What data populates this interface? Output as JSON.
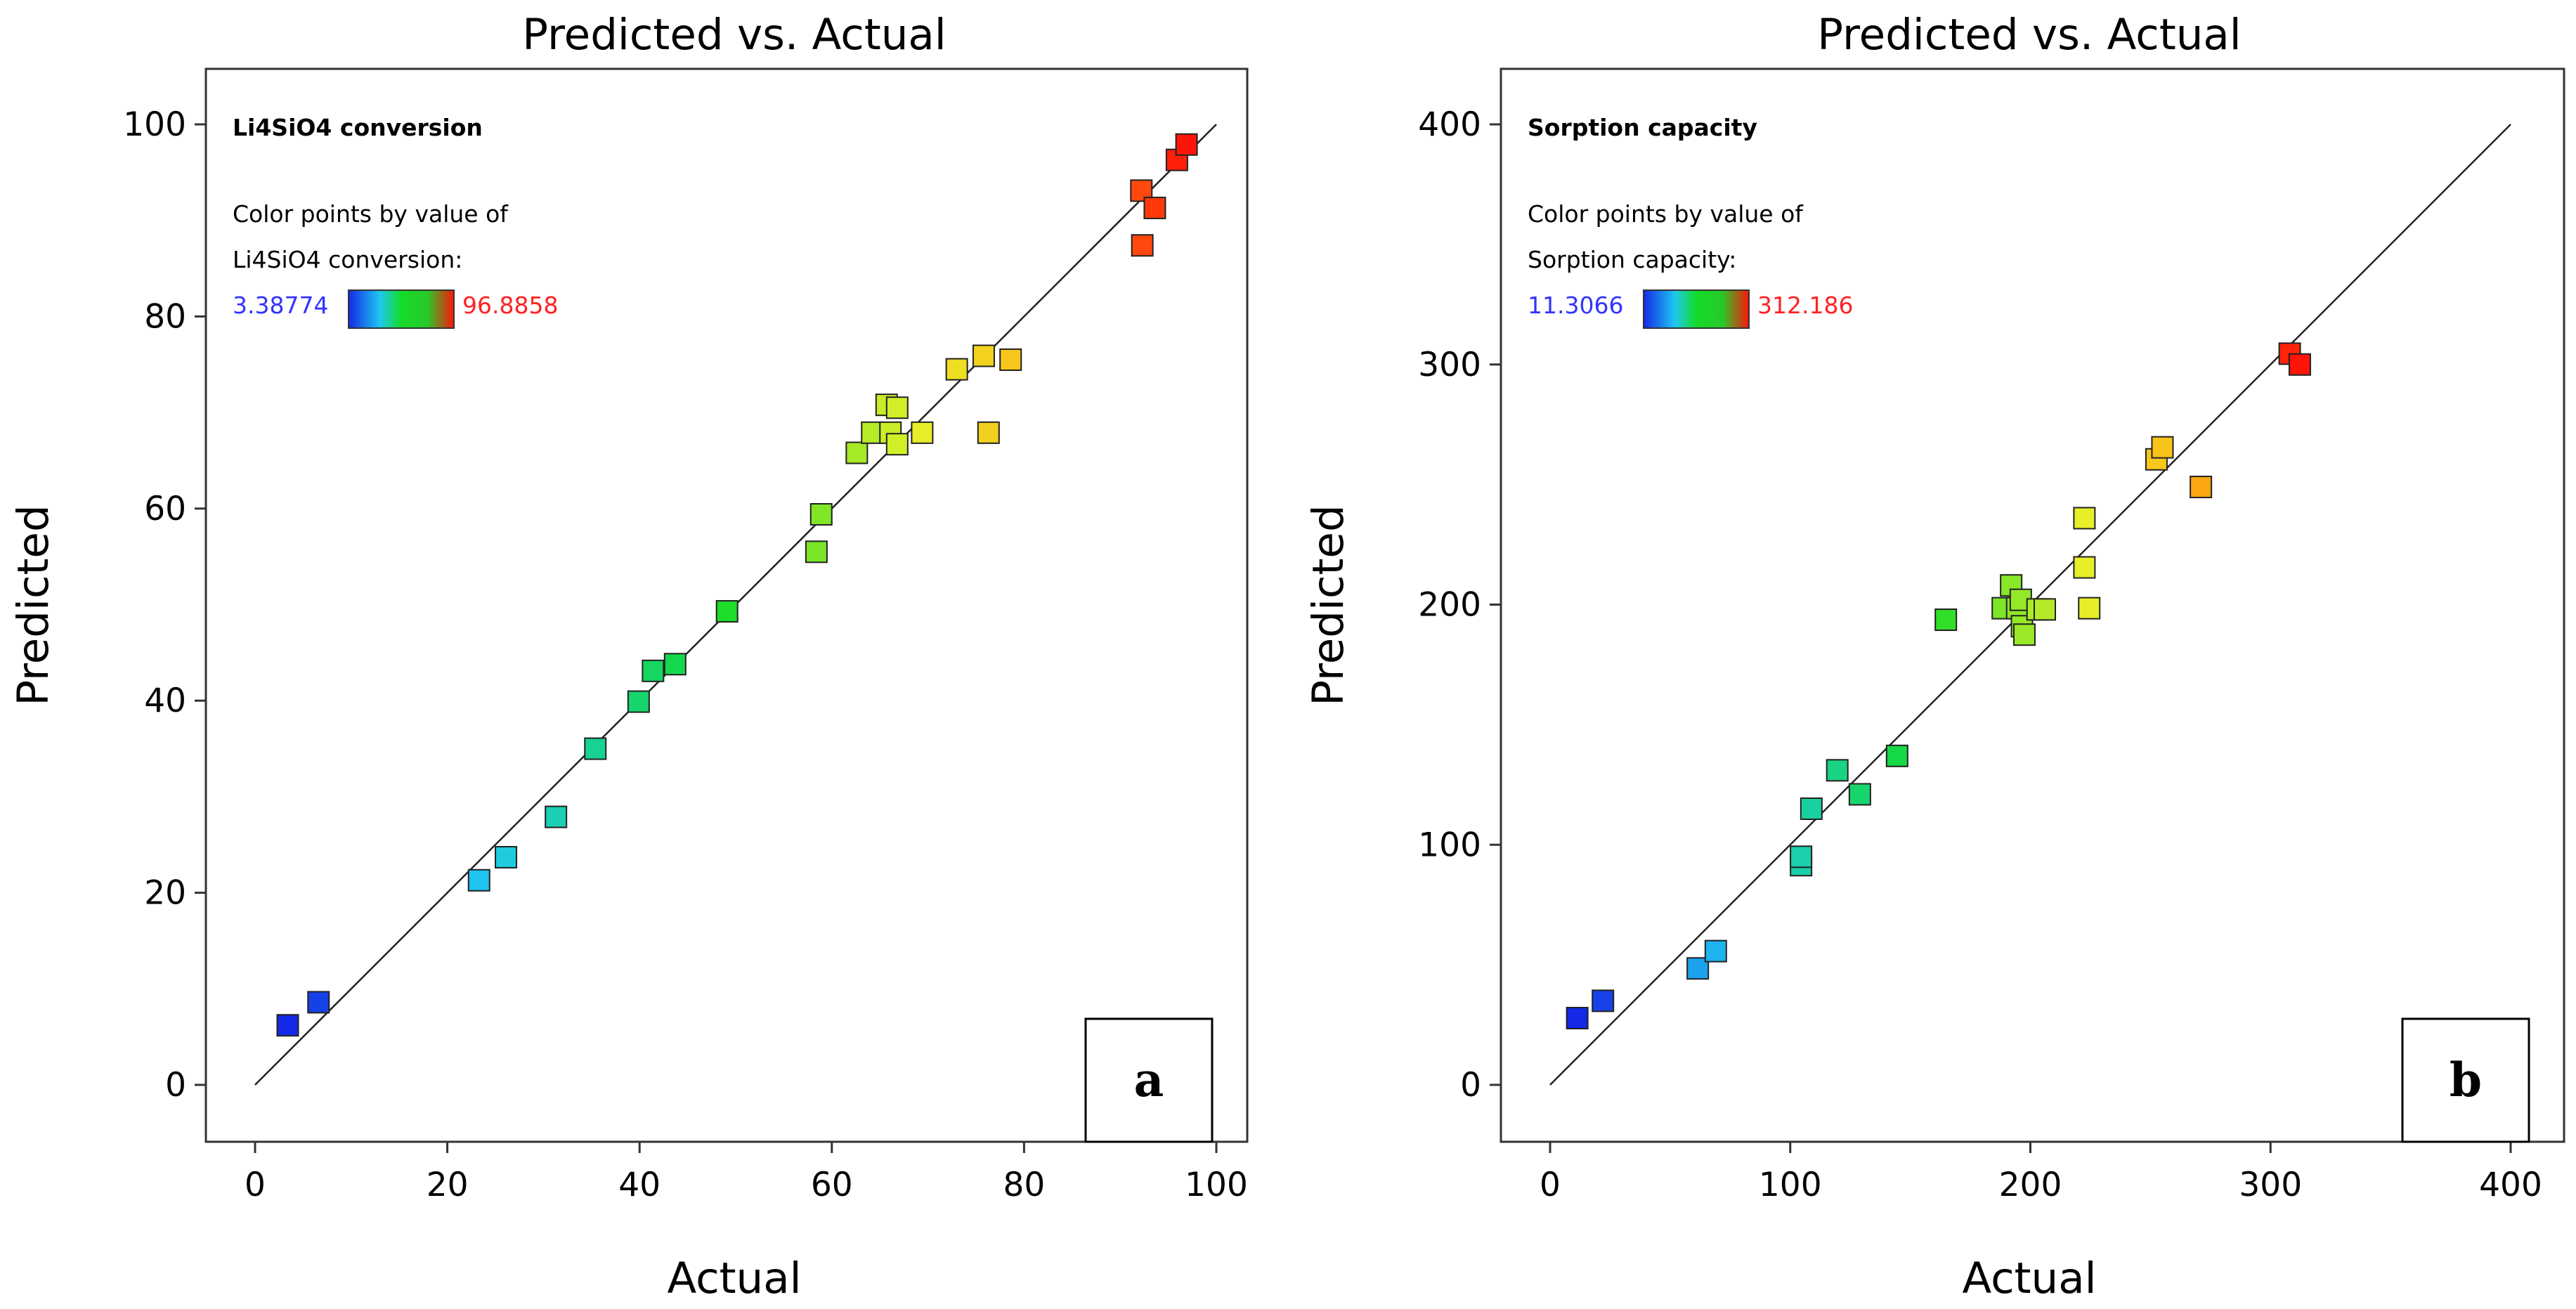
{
  "chart_data": [
    {
      "type": "scatter",
      "title": "Predicted vs. Actual",
      "xlabel": "Actual",
      "ylabel": "Predicted",
      "xlim": [
        0,
        100
      ],
      "ylim": [
        0,
        100
      ],
      "xticks": [
        "0",
        "20",
        "40",
        "60",
        "80",
        "100"
      ],
      "yticks": [
        "0",
        "20",
        "40",
        "60",
        "80",
        "100"
      ],
      "reference_line": "y = x",
      "grid": false,
      "legend": {
        "title": "Li4SiO4 conversion",
        "line1": "Color points by value of",
        "line2": "Li4SiO4 conversion:",
        "min_label": "3.38774",
        "max_label": "96.8858",
        "min_color": "#3333ff",
        "max_color": "#ff2222",
        "placement": "top-left"
      },
      "panel_letter": "a",
      "points": [
        {
          "x": 3.4,
          "y": 6.2
        },
        {
          "x": 6.6,
          "y": 8.6
        },
        {
          "x": 23.3,
          "y": 21.3
        },
        {
          "x": 26.1,
          "y": 23.7
        },
        {
          "x": 31.3,
          "y": 27.9
        },
        {
          "x": 35.4,
          "y": 35.0
        },
        {
          "x": 39.9,
          "y": 39.9
        },
        {
          "x": 41.4,
          "y": 43.1
        },
        {
          "x": 43.7,
          "y": 43.8
        },
        {
          "x": 49.1,
          "y": 49.3
        },
        {
          "x": 58.4,
          "y": 55.5
        },
        {
          "x": 58.9,
          "y": 59.4
        },
        {
          "x": 62.6,
          "y": 65.8
        },
        {
          "x": 64.2,
          "y": 67.9
        },
        {
          "x": 65.7,
          "y": 70.8
        },
        {
          "x": 66.8,
          "y": 70.5
        },
        {
          "x": 66.1,
          "y": 67.9
        },
        {
          "x": 66.8,
          "y": 66.7
        },
        {
          "x": 69.4,
          "y": 67.9
        },
        {
          "x": 73.0,
          "y": 74.5
        },
        {
          "x": 75.8,
          "y": 75.9
        },
        {
          "x": 76.3,
          "y": 67.9
        },
        {
          "x": 78.6,
          "y": 75.5
        },
        {
          "x": 92.2,
          "y": 93.1
        },
        {
          "x": 92.3,
          "y": 87.4
        },
        {
          "x": 93.6,
          "y": 91.3
        },
        {
          "x": 95.9,
          "y": 96.3
        },
        {
          "x": 96.9,
          "y": 97.9
        }
      ]
    },
    {
      "type": "scatter",
      "title": "Predicted vs. Actual",
      "xlabel": "Actual",
      "ylabel": "Predicted",
      "xlim": [
        0,
        400
      ],
      "ylim": [
        0,
        400
      ],
      "xticks": [
        "0",
        "100",
        "200",
        "300",
        "400"
      ],
      "yticks": [
        "0",
        "100",
        "200",
        "300",
        "400"
      ],
      "reference_line": "y = x",
      "grid": false,
      "legend": {
        "title": "Sorption capacity",
        "line1": "Color points by value of",
        "line2": "Sorption capacity:",
        "min_label": "11.3066",
        "max_label": "312.186",
        "min_color": "#3333ff",
        "max_color": "#ff2222",
        "placement": "top-left"
      },
      "panel_letter": "b",
      "points": [
        {
          "x": 11.3,
          "y": 27.8
        },
        {
          "x": 22.0,
          "y": 35.0
        },
        {
          "x": 61.5,
          "y": 48.5
        },
        {
          "x": 69.0,
          "y": 55.7
        },
        {
          "x": 104.5,
          "y": 91.5
        },
        {
          "x": 104.5,
          "y": 95.0
        },
        {
          "x": 108.8,
          "y": 115.0
        },
        {
          "x": 119.6,
          "y": 131.0
        },
        {
          "x": 129.0,
          "y": 121.0
        },
        {
          "x": 144.5,
          "y": 137.0
        },
        {
          "x": 164.8,
          "y": 193.7
        },
        {
          "x": 188.5,
          "y": 198.5
        },
        {
          "x": 192.0,
          "y": 208.0
        },
        {
          "x": 194.5,
          "y": 198.5
        },
        {
          "x": 196.0,
          "y": 202.0
        },
        {
          "x": 196.5,
          "y": 191.0
        },
        {
          "x": 197.5,
          "y": 187.5
        },
        {
          "x": 203.0,
          "y": 198.0
        },
        {
          "x": 206.0,
          "y": 198.0
        },
        {
          "x": 222.5,
          "y": 236.0
        },
        {
          "x": 222.5,
          "y": 215.5
        },
        {
          "x": 224.5,
          "y": 198.5
        },
        {
          "x": 252.5,
          "y": 260.5
        },
        {
          "x": 255.0,
          "y": 265.5
        },
        {
          "x": 271.0,
          "y": 249.0
        },
        {
          "x": 308.0,
          "y": 304.5
        },
        {
          "x": 312.2,
          "y": 300.0
        }
      ]
    }
  ]
}
